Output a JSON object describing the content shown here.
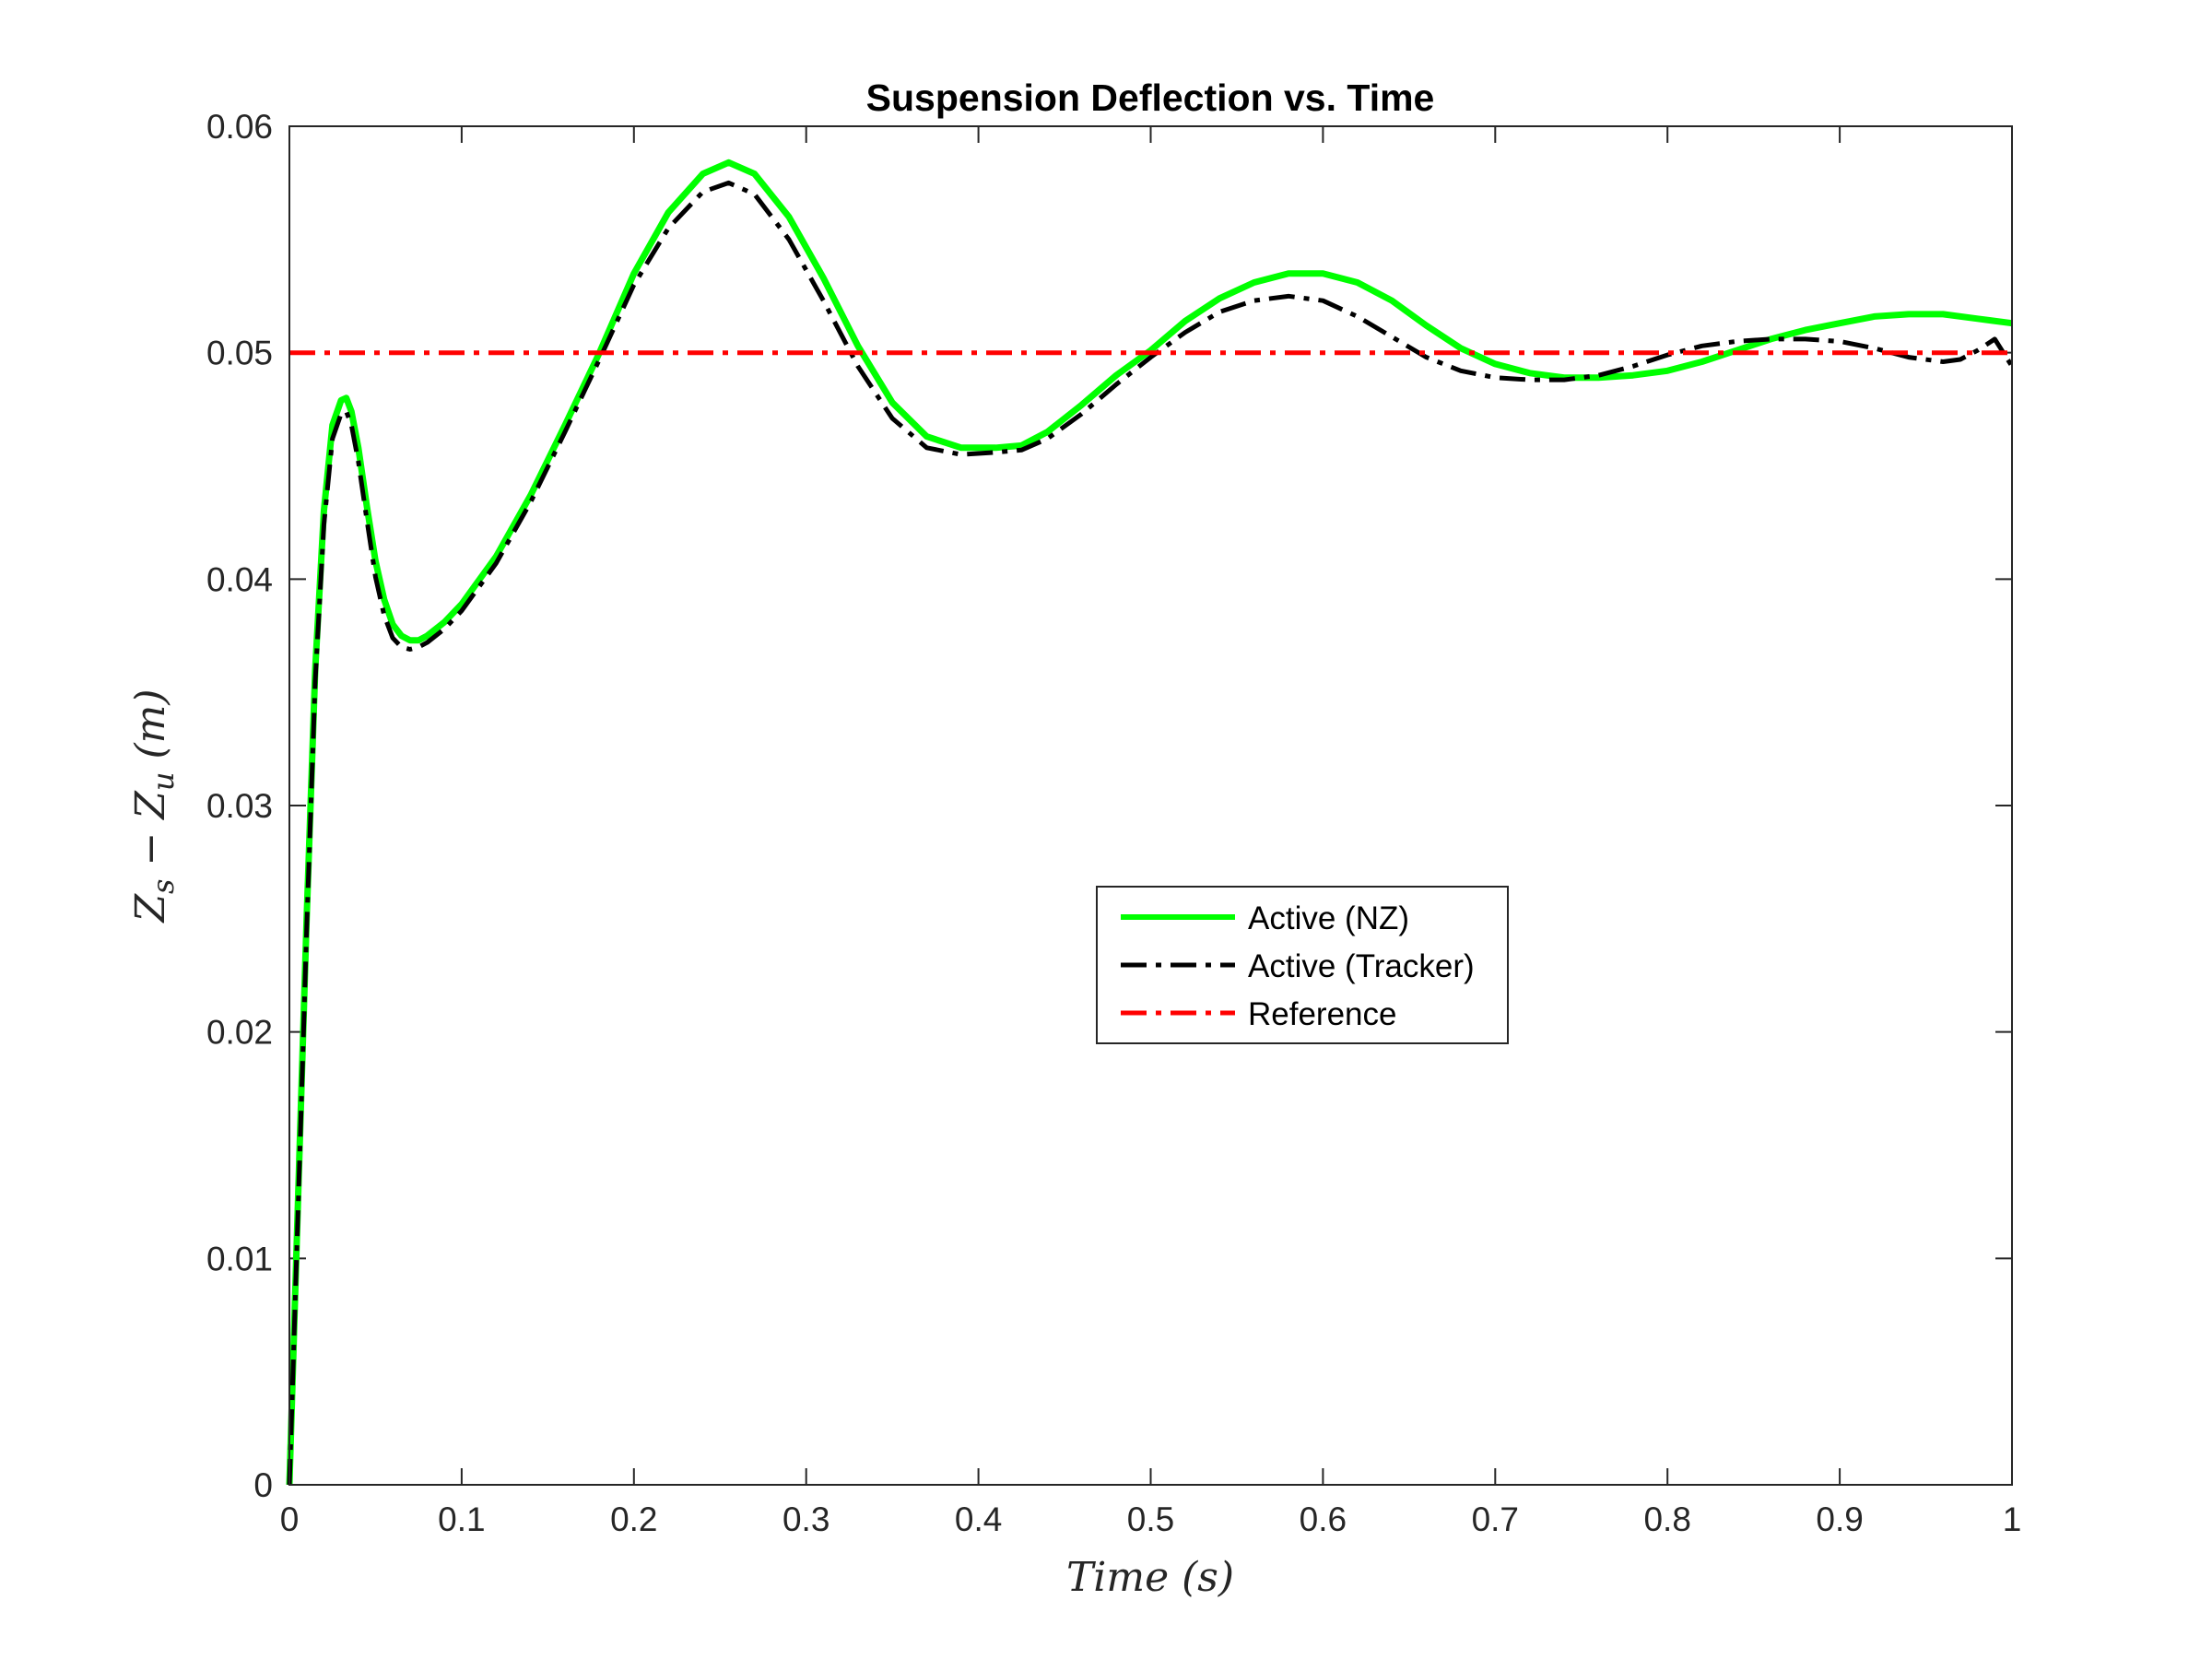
{
  "chart_data": {
    "type": "line",
    "title": "Suspension Deflection vs. Time",
    "xlabel": "Time (s)",
    "ylabel": "Z_s − Z_u (m)",
    "ylabel_parts": {
      "a": "Z",
      "a_sub": "s",
      "op": " − ",
      "b": "Z",
      "b_sub": "u",
      "unit": " (m)"
    },
    "xlim": [
      0,
      1
    ],
    "ylim": [
      0,
      0.06
    ],
    "xticks": [
      0,
      0.1,
      0.2,
      0.3,
      0.4,
      0.5,
      0.6,
      0.7,
      0.8,
      0.9,
      1
    ],
    "xtick_labels": [
      "0",
      "0.1",
      "0.2",
      "0.3",
      "0.4",
      "0.5",
      "0.6",
      "0.7",
      "0.8",
      "0.9",
      "1"
    ],
    "yticks": [
      0,
      0.01,
      0.02,
      0.03,
      0.04,
      0.05,
      0.06
    ],
    "ytick_labels": [
      "0",
      "0.01",
      "0.02",
      "0.03",
      "0.04",
      "0.05",
      "0.06"
    ],
    "grid": false,
    "legend_position": "center-right",
    "series": [
      {
        "name": "Active (NZ)",
        "color": "#00ff00",
        "style": "solid",
        "x": [
          0,
          0.005,
          0.01,
          0.015,
          0.02,
          0.025,
          0.03,
          0.033,
          0.036,
          0.04,
          0.045,
          0.05,
          0.055,
          0.06,
          0.065,
          0.07,
          0.075,
          0.08,
          0.09,
          0.1,
          0.12,
          0.14,
          0.16,
          0.18,
          0.2,
          0.22,
          0.24,
          0.255,
          0.27,
          0.29,
          0.31,
          0.33,
          0.35,
          0.37,
          0.39,
          0.41,
          0.425,
          0.44,
          0.46,
          0.48,
          0.5,
          0.52,
          0.54,
          0.56,
          0.58,
          0.6,
          0.62,
          0.64,
          0.66,
          0.68,
          0.7,
          0.72,
          0.74,
          0.76,
          0.78,
          0.8,
          0.82,
          0.84,
          0.86,
          0.88,
          0.9,
          0.92,
          0.94,
          0.96,
          0.98,
          1.0
        ],
        "y": [
          0,
          0.0125,
          0.025,
          0.036,
          0.043,
          0.0468,
          0.0479,
          0.048,
          0.0474,
          0.0458,
          0.0432,
          0.0408,
          0.0391,
          0.038,
          0.0375,
          0.0373,
          0.0373,
          0.0375,
          0.0381,
          0.0389,
          0.041,
          0.0437,
          0.0468,
          0.05,
          0.0535,
          0.0562,
          0.0579,
          0.0584,
          0.0579,
          0.056,
          0.0533,
          0.0503,
          0.0478,
          0.0463,
          0.0458,
          0.0458,
          0.0459,
          0.0465,
          0.0477,
          0.049,
          0.0501,
          0.0514,
          0.0524,
          0.0531,
          0.0535,
          0.0535,
          0.0531,
          0.0523,
          0.0512,
          0.0502,
          0.0495,
          0.0491,
          0.0489,
          0.0489,
          0.049,
          0.0492,
          0.0496,
          0.0501,
          0.0506,
          0.051,
          0.0513,
          0.0516,
          0.0517,
          0.0517,
          0.0515,
          0.0513
        ]
      },
      {
        "name": "Active (Tracker)",
        "color": "#000000",
        "style": "dashdot",
        "x": [
          0,
          0.005,
          0.01,
          0.015,
          0.02,
          0.025,
          0.03,
          0.033,
          0.036,
          0.04,
          0.045,
          0.05,
          0.055,
          0.06,
          0.065,
          0.07,
          0.075,
          0.08,
          0.09,
          0.1,
          0.12,
          0.14,
          0.16,
          0.18,
          0.2,
          0.22,
          0.24,
          0.255,
          0.27,
          0.29,
          0.31,
          0.33,
          0.35,
          0.37,
          0.39,
          0.41,
          0.425,
          0.44,
          0.46,
          0.48,
          0.5,
          0.52,
          0.54,
          0.56,
          0.58,
          0.6,
          0.62,
          0.64,
          0.66,
          0.68,
          0.7,
          0.72,
          0.74,
          0.76,
          0.78,
          0.8,
          0.82,
          0.84,
          0.86,
          0.88,
          0.9,
          0.92,
          0.94,
          0.96,
          0.97,
          0.98,
          0.99,
          1.0
        ],
        "y": [
          0,
          0.012,
          0.0245,
          0.0355,
          0.0424,
          0.0462,
          0.0473,
          0.0474,
          0.0468,
          0.0452,
          0.0426,
          0.0401,
          0.0384,
          0.0374,
          0.037,
          0.0369,
          0.037,
          0.0372,
          0.0378,
          0.0386,
          0.0407,
          0.0434,
          0.0465,
          0.0497,
          0.053,
          0.0555,
          0.0571,
          0.0575,
          0.057,
          0.055,
          0.0523,
          0.0494,
          0.0471,
          0.0458,
          0.0455,
          0.0456,
          0.0457,
          0.0462,
          0.0473,
          0.0486,
          0.0498,
          0.0509,
          0.0518,
          0.0523,
          0.0525,
          0.0523,
          0.0516,
          0.0507,
          0.0498,
          0.0492,
          0.0489,
          0.0488,
          0.0488,
          0.049,
          0.0494,
          0.0499,
          0.0503,
          0.0505,
          0.0506,
          0.0506,
          0.0505,
          0.0502,
          0.0498,
          0.0496,
          0.0497,
          0.0501,
          0.0506,
          0.0494
        ]
      },
      {
        "name": "Reference",
        "color": "#ff0000",
        "style": "dashdot",
        "x": [
          0,
          1
        ],
        "y": [
          0.05,
          0.05
        ]
      }
    ]
  }
}
